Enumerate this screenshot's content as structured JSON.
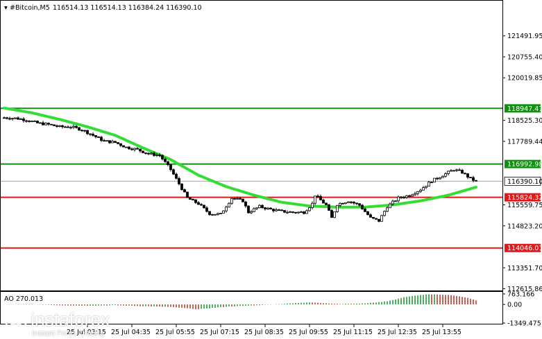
{
  "header": {
    "symbol_label": "#Bitcoin,M5",
    "ohlc_label": "116514.13 116514.13 116384.24 116390.10"
  },
  "indicator": {
    "label": "AO 270.013",
    "axis_ticks": [
      {
        "label": "763.166",
        "value": 763.166
      },
      {
        "label": "0.00",
        "value": 0
      },
      {
        "label": "-1349.475",
        "value": -1349.475
      }
    ],
    "positive_color": "#1f9e3a",
    "negative_color": "#c0392b"
  },
  "logo": {
    "brand": "instaforex",
    "tagline": "Instant Forex Trading"
  },
  "colors": {
    "candle": "#000000",
    "moving_average": "#33dd33",
    "support_line": "#e01818",
    "resistance_line": "#129012",
    "grid": "#c8c8c8",
    "current_price_line": "#a0a0a0"
  },
  "chart_data": {
    "type": "candlestick",
    "title": "#Bitcoin,M5",
    "timeframe": "M5",
    "ylim": [
      112615.86,
      122227.0
    ],
    "y_ticks": [
      {
        "label": "121491.95",
        "value": 121491.95
      },
      {
        "label": "120755.40",
        "value": 120755.4
      },
      {
        "label": "120019.85",
        "value": 120019.85
      },
      {
        "label": "118525.30",
        "value": 118525.3
      },
      {
        "label": "117789.44",
        "value": 117789.44
      },
      {
        "label": "115559.75",
        "value": 115559.75
      },
      {
        "label": "114823.20",
        "value": 114823.2
      },
      {
        "label": "113351.70",
        "value": 113351.7
      },
      {
        "label": "112615.86",
        "value": 112615.86
      }
    ],
    "x_ticks": [
      {
        "label": "25 Jul 03:15",
        "index": 30
      },
      {
        "label": "25 Jul 04:35",
        "index": 46
      },
      {
        "label": "25 Jul 05:55",
        "index": 62
      },
      {
        "label": "25 Jul 07:15",
        "index": 78
      },
      {
        "label": "25 Jul 08:35",
        "index": 94
      },
      {
        "label": "25 Jul 09:55",
        "index": 110
      },
      {
        "label": "25 Jul 11:15",
        "index": 126
      },
      {
        "label": "25 Jul 12:35",
        "index": 142
      },
      {
        "label": "25 Jul 13:55",
        "index": 158
      }
    ],
    "levels": [
      {
        "label": "118947.47",
        "value": 118947.47,
        "kind": "resistance"
      },
      {
        "label": "116992.98",
        "value": 116992.98,
        "kind": "resistance"
      },
      {
        "label": "115824.32",
        "value": 115824.32,
        "kind": "support"
      },
      {
        "label": "114046.01",
        "value": 114046.01,
        "kind": "support"
      }
    ],
    "current_price": {
      "label": "116390.10",
      "value": 116390.1
    },
    "price_anchors": [
      [
        0,
        118620
      ],
      [
        4,
        118600
      ],
      [
        8,
        118540
      ],
      [
        12,
        118430
      ],
      [
        16,
        118380
      ],
      [
        20,
        118300
      ],
      [
        24,
        118300
      ],
      [
        28,
        118200
      ],
      [
        32,
        118000
      ],
      [
        36,
        117800
      ],
      [
        40,
        117750
      ],
      [
        44,
        117580
      ],
      [
        48,
        117500
      ],
      [
        52,
        117350
      ],
      [
        56,
        117300
      ],
      [
        60,
        116800
      ],
      [
        63,
        116300
      ],
      [
        66,
        115800
      ],
      [
        70,
        115600
      ],
      [
        74,
        115250
      ],
      [
        78,
        115230
      ],
      [
        82,
        115800
      ],
      [
        86,
        115700
      ],
      [
        88,
        115300
      ],
      [
        92,
        115500
      ],
      [
        96,
        115400
      ],
      [
        100,
        115330
      ],
      [
        104,
        115300
      ],
      [
        108,
        115300
      ],
      [
        111,
        115600
      ],
      [
        112,
        115900
      ],
      [
        116,
        115550
      ],
      [
        118,
        115100
      ],
      [
        120,
        115580
      ],
      [
        124,
        115700
      ],
      [
        128,
        115550
      ],
      [
        132,
        115100
      ],
      [
        135,
        115000
      ],
      [
        138,
        115500
      ],
      [
        142,
        115800
      ],
      [
        146,
        115900
      ],
      [
        150,
        116100
      ],
      [
        154,
        116400
      ],
      [
        158,
        116600
      ],
      [
        162,
        116800
      ],
      [
        165,
        116700
      ],
      [
        168,
        116480
      ],
      [
        170,
        116390
      ]
    ],
    "moving_average_anchors": [
      [
        0,
        118960
      ],
      [
        10,
        118790
      ],
      [
        20,
        118560
      ],
      [
        30,
        118300
      ],
      [
        40,
        118000
      ],
      [
        50,
        117560
      ],
      [
        60,
        117150
      ],
      [
        70,
        116600
      ],
      [
        80,
        116200
      ],
      [
        90,
        115900
      ],
      [
        100,
        115650
      ],
      [
        110,
        115520
      ],
      [
        120,
        115480
      ],
      [
        130,
        115480
      ],
      [
        140,
        115560
      ],
      [
        150,
        115700
      ],
      [
        160,
        115900
      ],
      [
        170,
        116180
      ]
    ],
    "ao_anchors": [
      [
        0,
        0
      ],
      [
        10,
        20
      ],
      [
        20,
        -60
      ],
      [
        30,
        -90
      ],
      [
        40,
        -60
      ],
      [
        50,
        -120
      ],
      [
        60,
        -180
      ],
      [
        70,
        -350
      ],
      [
        80,
        -160
      ],
      [
        90,
        -70
      ],
      [
        100,
        40
      ],
      [
        110,
        160
      ],
      [
        120,
        40
      ],
      [
        130,
        80
      ],
      [
        138,
        220
      ],
      [
        144,
        520
      ],
      [
        152,
        740
      ],
      [
        160,
        700
      ],
      [
        166,
        520
      ],
      [
        170,
        300
      ]
    ]
  }
}
